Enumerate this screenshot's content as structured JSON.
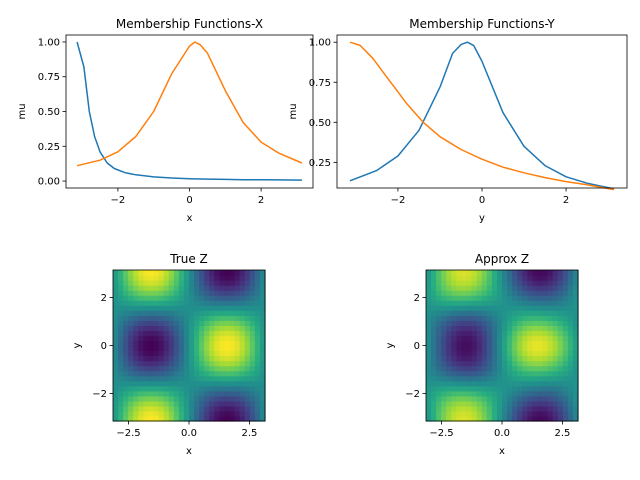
{
  "chart_data": [
    {
      "type": "line",
      "title": "Membership Functions-X",
      "xlabel": "x",
      "ylabel": "mu",
      "xlim": [
        -3.45,
        3.45
      ],
      "ylim": [
        -0.05,
        1.05
      ],
      "xticks": [
        -2,
        0,
        2
      ],
      "yticks": [
        0.0,
        0.25,
        0.5,
        0.75,
        1.0
      ],
      "ytick_labels": [
        "0.00",
        "0.25",
        "0.50",
        "0.75",
        "1.00"
      ],
      "grid": false,
      "series": [
        {
          "color": "#1f77b4",
          "x": [
            -3.14,
            -2.95,
            -2.8,
            -2.65,
            -2.5,
            -2.3,
            -2.1,
            -1.8,
            -1.5,
            -1.0,
            -0.5,
            0.0,
            0.5,
            1.0,
            1.5,
            2.0,
            2.5,
            3.14
          ],
          "y": [
            1.0,
            0.82,
            0.5,
            0.32,
            0.21,
            0.13,
            0.09,
            0.06,
            0.045,
            0.03,
            0.022,
            0.017,
            0.014,
            0.012,
            0.01,
            0.009,
            0.008,
            0.007
          ]
        },
        {
          "color": "#ff7f0e",
          "x": [
            -3.14,
            -2.5,
            -2.0,
            -1.5,
            -1.0,
            -0.5,
            0.0,
            0.15,
            0.3,
            0.5,
            1.0,
            1.5,
            2.0,
            2.5,
            3.14
          ],
          "y": [
            0.11,
            0.15,
            0.21,
            0.32,
            0.5,
            0.77,
            0.97,
            1.0,
            0.98,
            0.92,
            0.65,
            0.42,
            0.28,
            0.2,
            0.13
          ]
        }
      ]
    },
    {
      "type": "line",
      "title": "Membership Functions-Y",
      "xlabel": "y",
      "ylabel": "mu",
      "xlim": [
        -3.45,
        3.45
      ],
      "ylim": [
        0.09,
        1.045
      ],
      "xticks": [
        -2,
        0,
        2
      ],
      "yticks": [
        0.25,
        0.5,
        0.75,
        1.0
      ],
      "ytick_labels": [
        "0.25",
        "0.50",
        "0.75",
        "1.00"
      ],
      "grid": false,
      "series": [
        {
          "color": "#1f77b4",
          "x": [
            -3.14,
            -2.5,
            -2.0,
            -1.5,
            -1.0,
            -0.7,
            -0.5,
            -0.35,
            -0.2,
            0.0,
            0.5,
            1.0,
            1.5,
            2.0,
            2.5,
            3.14
          ],
          "y": [
            0.135,
            0.2,
            0.29,
            0.45,
            0.72,
            0.93,
            0.985,
            1.0,
            0.98,
            0.88,
            0.56,
            0.35,
            0.23,
            0.16,
            0.12,
            0.085
          ]
        },
        {
          "color": "#ff7f0e",
          "x": [
            -3.14,
            -2.9,
            -2.6,
            -2.2,
            -1.8,
            -1.4,
            -1.0,
            -0.5,
            0.0,
            0.5,
            1.0,
            1.5,
            2.0,
            2.5,
            3.14
          ],
          "y": [
            1.0,
            0.98,
            0.9,
            0.76,
            0.62,
            0.5,
            0.41,
            0.33,
            0.27,
            0.22,
            0.185,
            0.155,
            0.13,
            0.11,
            0.08
          ]
        }
      ]
    },
    {
      "type": "heatmap",
      "title": "True Z",
      "xlabel": "x",
      "ylabel": "y",
      "colormap": "viridis",
      "function": "sin(x)*cos(y)",
      "grid_size": 30,
      "xlim": [
        -3.14159,
        3.14159
      ],
      "ylim": [
        -3.14159,
        3.14159
      ],
      "xticks": [
        -2.5,
        0.0,
        2.5
      ],
      "xtick_labels": [
        "−2.5",
        "0.0",
        "2.5"
      ],
      "yticks": [
        -2,
        0,
        2
      ],
      "zrange": [
        -1,
        1
      ]
    },
    {
      "type": "heatmap",
      "title": "Approx Z",
      "xlabel": "x",
      "ylabel": "y",
      "colormap": "viridis",
      "function": "approximation of sin(x)*cos(y)",
      "grid_size": 30,
      "xlim": [
        -3.14159,
        3.14159
      ],
      "ylim": [
        -3.14159,
        3.14159
      ],
      "xticks": [
        -2.5,
        0.0,
        2.5
      ],
      "xtick_labels": [
        "−2.5",
        "0.0",
        "2.5"
      ],
      "yticks": [
        -2,
        0,
        2
      ],
      "zrange": [
        -1,
        1
      ]
    }
  ]
}
